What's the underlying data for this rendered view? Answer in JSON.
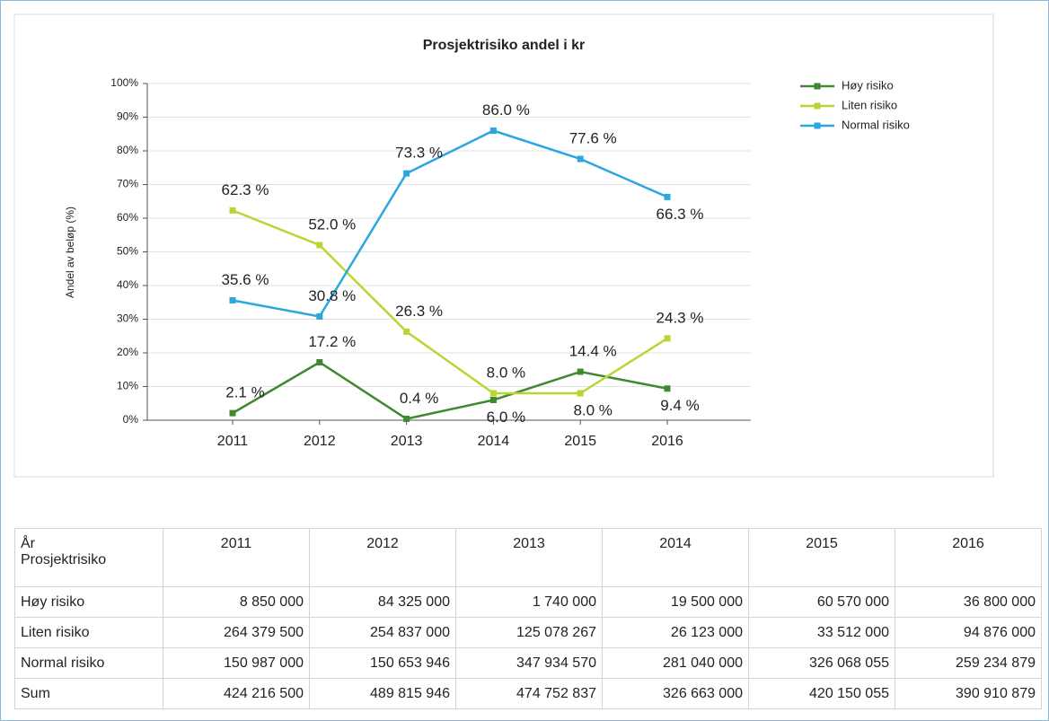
{
  "chart_data": {
    "type": "line",
    "title": "Prosjektrisiko andel i kr",
    "y_label": "Andel av beløp (%)",
    "categories": [
      "2011",
      "2012",
      "2013",
      "2014",
      "2015",
      "2016"
    ],
    "ylim": [
      0,
      100
    ],
    "yticks": [
      {
        "value": 0,
        "label": "0%"
      },
      {
        "value": 10,
        "label": "10%"
      },
      {
        "value": 20,
        "label": "20%"
      },
      {
        "value": 30,
        "label": "30%"
      },
      {
        "value": 40,
        "label": "40%"
      },
      {
        "value": 50,
        "label": "50%"
      },
      {
        "value": 60,
        "label": "60%"
      },
      {
        "value": 70,
        "label": "70%"
      },
      {
        "value": 80,
        "label": "80%"
      },
      {
        "value": 90,
        "label": "90%"
      },
      {
        "value": 100,
        "label": "100%"
      }
    ],
    "grid": true,
    "legend": "right",
    "series": [
      {
        "name": "Høy risiko",
        "color": "#3d8a2f",
        "values": [
          2.1,
          17.2,
          0.4,
          6.0,
          14.4,
          9.4
        ],
        "value_labels": [
          "2.1 %",
          "17.2 %",
          "0.4 %",
          "6.0 %",
          "14.4 %",
          "9.4 %"
        ]
      },
      {
        "name": "Liten risiko",
        "color": "#b8d531",
        "values": [
          62.3,
          52.0,
          26.3,
          8.0,
          8.0,
          24.3
        ],
        "value_labels": [
          "62.3 %",
          "52.0 %",
          "26.3 %",
          "8.0 %",
          "8.0 %",
          "24.3 %"
        ]
      },
      {
        "name": "Normal risiko",
        "color": "#2aa7df",
        "values": [
          35.6,
          30.8,
          73.3,
          86.0,
          77.6,
          66.3
        ],
        "value_labels": [
          "35.6 %",
          "30.8 %",
          "73.3 %",
          "86.0 %",
          "77.6 %",
          "66.3 %"
        ]
      }
    ]
  },
  "table": {
    "corner_top": "År",
    "corner_bottom": "Prosjektrisiko",
    "columns": [
      "2011",
      "2012",
      "2013",
      "2014",
      "2015",
      "2016"
    ],
    "rows": [
      {
        "label": "Høy risiko",
        "values": [
          "8 850 000",
          "84 325 000",
          "1 740 000",
          "19 500 000",
          "60 570 000",
          "36 800 000"
        ]
      },
      {
        "label": "Liten risiko",
        "values": [
          "264 379 500",
          "254 837 000",
          "125 078 267",
          "26 123 000",
          "33 512 000",
          "94 876 000"
        ]
      },
      {
        "label": "Normal risiko",
        "values": [
          "150 987 000",
          "150 653 946",
          "347 934 570",
          "281 040 000",
          "326 068 055",
          "259 234 879"
        ]
      },
      {
        "label": "Sum",
        "values": [
          "424 216 500",
          "489 815 946",
          "474 752 837",
          "326 663 000",
          "420 150 055",
          "390 910 879"
        ]
      }
    ]
  }
}
